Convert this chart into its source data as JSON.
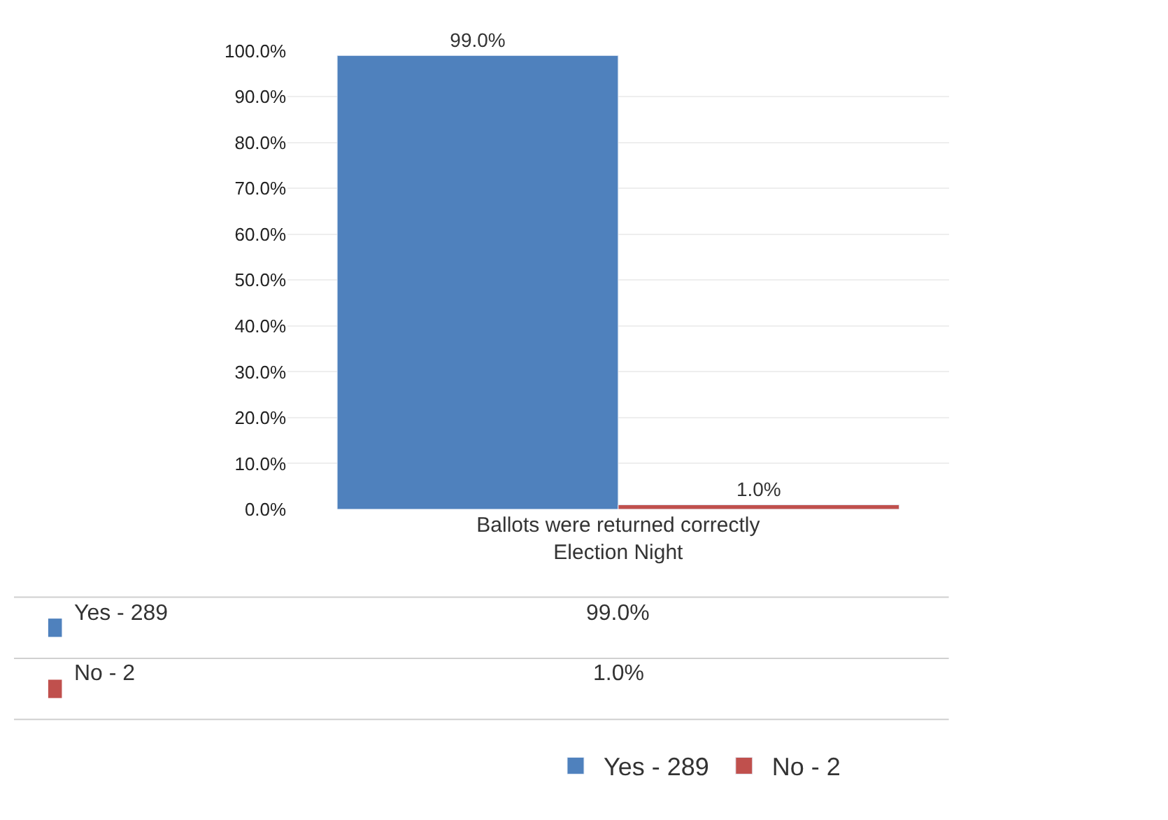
{
  "chart_data": {
    "type": "bar",
    "categories": [
      "Ballots were returned correctly Election Night"
    ],
    "series": [
      {
        "name": "Yes - 289",
        "color": "#4f81bd",
        "values": [
          99.0
        ],
        "value_labels": [
          "99.0%"
        ]
      },
      {
        "name": "No - 2",
        "color": "#c0504d",
        "values": [
          1.0
        ],
        "value_labels": [
          "1.0%"
        ]
      }
    ],
    "ylim": [
      0,
      100
    ],
    "yticks": [
      {
        "value": 0,
        "label": "0.0%"
      },
      {
        "value": 10,
        "label": "10.0%"
      },
      {
        "value": 20,
        "label": "20.0%"
      },
      {
        "value": 30,
        "label": "30.0%"
      },
      {
        "value": 40,
        "label": "40.0%"
      },
      {
        "value": 50,
        "label": "50.0%"
      },
      {
        "value": 60,
        "label": "60.0%"
      },
      {
        "value": 70,
        "label": "70.0%"
      },
      {
        "value": 80,
        "label": "80.0%"
      },
      {
        "value": 90,
        "label": "90.0%"
      },
      {
        "value": 100,
        "label": "100.0%"
      }
    ],
    "grid": "y",
    "legend": "bottom"
  }
}
